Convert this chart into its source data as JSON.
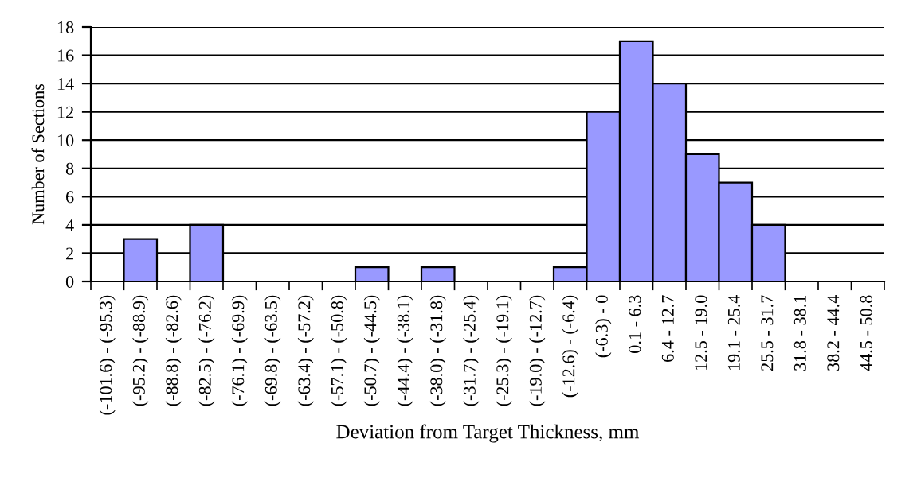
{
  "chart_data": {
    "type": "bar",
    "xlabel": "Deviation from Target Thickness, mm",
    "ylabel": "Number of Sections",
    "categories": [
      "(-101.6) - (-95.3)",
      "(-95.2) - (-88.9)",
      "(-88.8) - (-82.6)",
      "(-82.5) - (-76.2)",
      "(-76.1) - (-69.9)",
      "(-69.8) - (-63.5)",
      "(-63.4) - (-57.2)",
      "(-57.1) - (-50.8)",
      "(-50.7) - (-44.5)",
      "(-44.4) - (-38.1)",
      "(-38.0) - (-31.8)",
      "(-31.7) - (-25.4)",
      "(-25.3) - (-19.1)",
      "(-19.0) - (-12.7)",
      "(-12.6) - (-6.4)",
      "(-6.3) - 0",
      "0.1 - 6.3",
      "6.4 - 12.7",
      "12.5 - 19.0",
      "19.1 - 25.4",
      "25.5 - 31.7",
      "31.8 - 38.1",
      "38.2 - 44.4",
      "44.5 - 50.8"
    ],
    "values": [
      0,
      3,
      0,
      4,
      0,
      0,
      0,
      0,
      1,
      0,
      1,
      0,
      0,
      0,
      1,
      12,
      17,
      14,
      9,
      7,
      4,
      0,
      0,
      0
    ],
    "color": "#9999ff",
    "ylim": [
      0,
      18
    ],
    "yticks": [
      0,
      2,
      4,
      6,
      8,
      10,
      12,
      14,
      16,
      18
    ],
    "grid": "y",
    "legend": false
  }
}
